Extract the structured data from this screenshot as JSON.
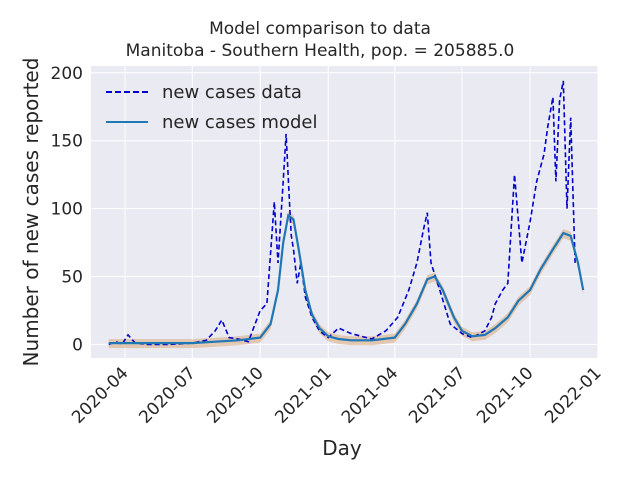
{
  "chart_data": {
    "type": "line",
    "title": "Model comparison to data",
    "subtitle": "Manitoba - Southern Health, pop. = 205885.0",
    "xlabel": "Day",
    "ylabel": "Number of new cases reported",
    "xlim": [
      "2020-02-15",
      "2022-01-01"
    ],
    "ylim": [
      -10,
      205
    ],
    "y_ticks": [
      0,
      50,
      100,
      150,
      200
    ],
    "x_ticks": [
      "2020-04",
      "2020-07",
      "2020-10",
      "2021-01",
      "2021-04",
      "2021-07",
      "2021-10",
      "2022-01"
    ],
    "grid": true,
    "legend_position": "top-left",
    "series": [
      {
        "name": "new cases data",
        "style": "dashed",
        "color": "#0000cc",
        "x": [
          "2020-03-10",
          "2020-03-20",
          "2020-03-28",
          "2020-04-05",
          "2020-04-15",
          "2020-05-01",
          "2020-06-01",
          "2020-07-01",
          "2020-07-20",
          "2020-08-01",
          "2020-08-10",
          "2020-08-20",
          "2020-09-01",
          "2020-09-15",
          "2020-10-01",
          "2020-10-10",
          "2020-10-20",
          "2020-10-25",
          "2020-11-01",
          "2020-11-05",
          "2020-11-10",
          "2020-11-12",
          "2020-11-15",
          "2020-11-20",
          "2020-11-25",
          "2020-12-01",
          "2020-12-10",
          "2020-12-20",
          "2021-01-01",
          "2021-01-15",
          "2021-02-01",
          "2021-03-01",
          "2021-03-20",
          "2021-04-05",
          "2021-04-20",
          "2021-05-01",
          "2021-05-10",
          "2021-05-15",
          "2021-05-20",
          "2021-06-01",
          "2021-06-15",
          "2021-07-01",
          "2021-07-15",
          "2021-08-01",
          "2021-08-10",
          "2021-08-15",
          "2021-08-25",
          "2021-09-01",
          "2021-09-10",
          "2021-09-20",
          "2021-10-01",
          "2021-10-10",
          "2021-10-20",
          "2021-10-25",
          "2021-11-01",
          "2021-11-05",
          "2021-11-10",
          "2021-11-15",
          "2021-11-20",
          "2021-11-25",
          "2021-12-01"
        ],
        "y": [
          0,
          2,
          0,
          7,
          1,
          0,
          0,
          1,
          3,
          10,
          18,
          5,
          4,
          2,
          25,
          30,
          105,
          60,
          120,
          155,
          100,
          80,
          70,
          45,
          60,
          35,
          20,
          10,
          5,
          12,
          8,
          4,
          10,
          20,
          40,
          60,
          85,
          97,
          60,
          40,
          15,
          8,
          5,
          10,
          20,
          30,
          40,
          45,
          125,
          60,
          90,
          120,
          140,
          160,
          182,
          120,
          180,
          194,
          100,
          167,
          60
        ]
      },
      {
        "name": "new cases model",
        "style": "solid",
        "color": "#1f77b4",
        "x": [
          "2020-03-10",
          "2020-04-01",
          "2020-05-01",
          "2020-06-01",
          "2020-07-01",
          "2020-08-01",
          "2020-09-01",
          "2020-10-01",
          "2020-10-15",
          "2020-10-25",
          "2020-11-01",
          "2020-11-08",
          "2020-11-15",
          "2020-11-22",
          "2020-12-01",
          "2020-12-10",
          "2020-12-20",
          "2021-01-01",
          "2021-01-15",
          "2021-02-01",
          "2021-03-01",
          "2021-04-01",
          "2021-04-15",
          "2021-05-01",
          "2021-05-15",
          "2021-05-25",
          "2021-06-05",
          "2021-06-20",
          "2021-07-01",
          "2021-07-15",
          "2021-08-01",
          "2021-08-15",
          "2021-09-01",
          "2021-09-15",
          "2021-10-01",
          "2021-10-15",
          "2021-11-01",
          "2021-11-15",
          "2021-11-25",
          "2021-12-05",
          "2021-12-12"
        ],
        "y": [
          1,
          1,
          1,
          1,
          1,
          2,
          3,
          5,
          15,
          40,
          75,
          95,
          92,
          70,
          40,
          22,
          12,
          6,
          4,
          3,
          3,
          5,
          15,
          30,
          48,
          50,
          40,
          20,
          10,
          6,
          7,
          12,
          20,
          32,
          40,
          55,
          70,
          82,
          80,
          60,
          40
        ]
      }
    ]
  }
}
